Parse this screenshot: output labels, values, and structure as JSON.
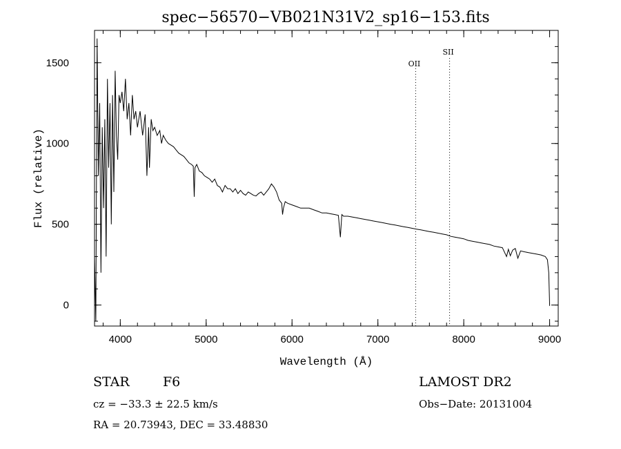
{
  "chart_data": {
    "type": "line",
    "title": "spec−56570−VB021N31V2_sp16−153.fits",
    "xlabel": "Wavelength (Å)",
    "ylabel": "Flux (relative)",
    "xlim": [
      3700,
      9100
    ],
    "ylim": [
      -130,
      1700
    ],
    "xticks": [
      4000,
      5000,
      6000,
      7000,
      8000,
      9000
    ],
    "yticks": [
      0,
      500,
      1000,
      1500
    ],
    "x_minor_step": 200,
    "y_minor_step": 100,
    "grid": false,
    "series": [
      {
        "name": "spectrum",
        "x": [
          3700,
          3715,
          3730,
          3745,
          3760,
          3775,
          3790,
          3805,
          3820,
          3835,
          3850,
          3865,
          3880,
          3895,
          3910,
          3925,
          3940,
          3955,
          3970,
          3985,
          4000,
          4020,
          4040,
          4060,
          4080,
          4100,
          4120,
          4140,
          4160,
          4180,
          4200,
          4230,
          4260,
          4290,
          4310,
          4330,
          4340,
          4360,
          4380,
          4400,
          4430,
          4460,
          4480,
          4500,
          4530,
          4560,
          4590,
          4620,
          4650,
          4680,
          4710,
          4740,
          4770,
          4800,
          4830,
          4850,
          4861,
          4870,
          4890,
          4920,
          4950,
          4980,
          5010,
          5040,
          5070,
          5100,
          5130,
          5160,
          5190,
          5220,
          5250,
          5280,
          5310,
          5340,
          5370,
          5400,
          5430,
          5460,
          5490,
          5520,
          5550,
          5580,
          5610,
          5640,
          5670,
          5700,
          5730,
          5760,
          5790,
          5820,
          5850,
          5880,
          5890,
          5900,
          5920,
          5950,
          6000,
          6050,
          6100,
          6150,
          6200,
          6250,
          6300,
          6350,
          6400,
          6450,
          6500,
          6540,
          6563,
          6580,
          6600,
          6650,
          6700,
          6750,
          6800,
          6850,
          6900,
          6950,
          7000,
          7050,
          7100,
          7150,
          7200,
          7250,
          7300,
          7350,
          7400,
          7450,
          7500,
          7550,
          7600,
          7650,
          7700,
          7750,
          7800,
          7850,
          7900,
          7950,
          8000,
          8050,
          8100,
          8150,
          8200,
          8250,
          8300,
          8350,
          8400,
          8450,
          8498,
          8520,
          8542,
          8570,
          8600,
          8630,
          8662,
          8700,
          8750,
          8800,
          8850,
          8900,
          8950,
          8975,
          8990,
          9000
        ],
        "y": [
          300,
          -100,
          1650,
          800,
          1250,
          200,
          1100,
          600,
          1150,
          300,
          1400,
          850,
          1250,
          500,
          1300,
          700,
          1450,
          1050,
          900,
          1300,
          1250,
          1320,
          1200,
          1400,
          1150,
          1250,
          1050,
          1300,
          1150,
          1200,
          1100,
          1200,
          1050,
          1180,
          800,
          1100,
          850,
          1150,
          1080,
          1100,
          1050,
          1080,
          1000,
          1050,
          1020,
          1000,
          990,
          980,
          960,
          940,
          930,
          920,
          900,
          880,
          870,
          860,
          670,
          850,
          870,
          830,
          820,
          800,
          790,
          780,
          760,
          780,
          740,
          730,
          700,
          740,
          720,
          720,
          700,
          720,
          690,
          710,
          690,
          680,
          700,
          690,
          680,
          675,
          690,
          700,
          680,
          700,
          720,
          750,
          730,
          700,
          650,
          630,
          560,
          600,
          640,
          630,
          620,
          610,
          600,
          600,
          600,
          590,
          580,
          570,
          570,
          565,
          560,
          555,
          420,
          560,
          550,
          550,
          545,
          540,
          535,
          530,
          525,
          520,
          515,
          510,
          505,
          500,
          495,
          490,
          485,
          480,
          475,
          470,
          465,
          460,
          455,
          450,
          445,
          440,
          435,
          425,
          420,
          415,
          410,
          400,
          395,
          390,
          385,
          380,
          375,
          365,
          360,
          355,
          300,
          345,
          305,
          340,
          350,
          290,
          335,
          330,
          325,
          320,
          315,
          310,
          300,
          280,
          200,
          -5
        ]
      }
    ],
    "line_markers": [
      {
        "label": "OII",
        "x": 7440
      },
      {
        "label": "SII",
        "x": 7835
      }
    ]
  },
  "info": {
    "class": "STAR",
    "subclass": "F6",
    "cz": "cz = −33.3 ± 22.5 km/s",
    "coords": "RA =  20.73943, DEC =  33.48830",
    "survey": "LAMOST DR2",
    "obs_date": "Obs−Date: 20131004"
  }
}
